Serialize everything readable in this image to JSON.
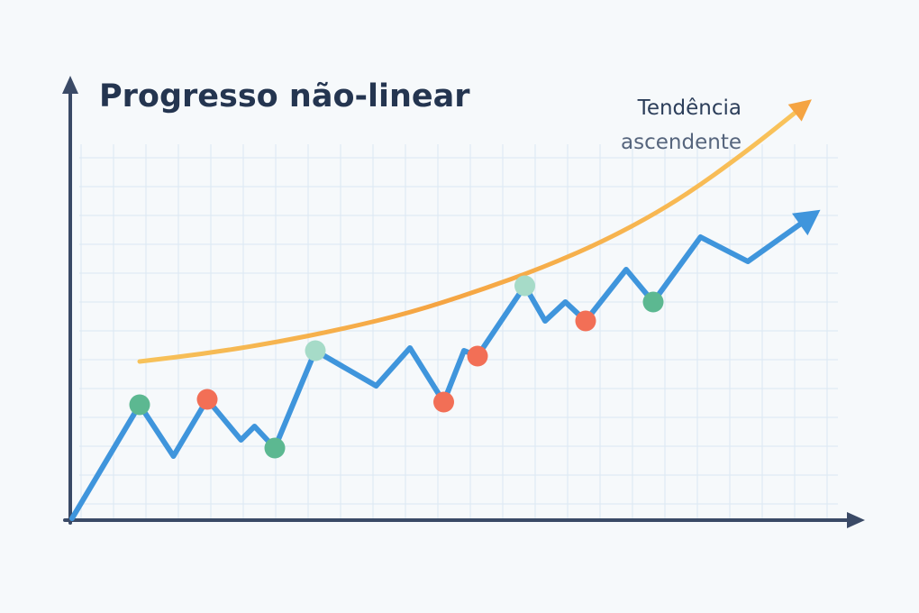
{
  "chart_data": {
    "type": "line",
    "title": "Progresso não-linear",
    "xlabel": "",
    "ylabel": "",
    "annotations": [
      {
        "text_line1": "Tendência",
        "text_line2": "ascendente"
      }
    ],
    "grid": true,
    "series": [
      {
        "role": "progress",
        "color": "#3f95dc",
        "points": [
          [
            0,
            0
          ],
          [
            1.0,
            4.2
          ],
          [
            1.5,
            2.3
          ],
          [
            2.0,
            4.4
          ],
          [
            2.5,
            2.9
          ],
          [
            2.7,
            3.4
          ],
          [
            3.0,
            2.6
          ],
          [
            3.6,
            6.2
          ],
          [
            4.5,
            4.9
          ],
          [
            5.0,
            6.3
          ],
          [
            5.5,
            4.3
          ],
          [
            5.8,
            6.2
          ],
          [
            6.0,
            6.0
          ],
          [
            6.7,
            8.6
          ],
          [
            7.0,
            7.3
          ],
          [
            7.3,
            8.0
          ],
          [
            7.6,
            7.3
          ],
          [
            8.2,
            9.2
          ],
          [
            8.6,
            8.0
          ],
          [
            9.3,
            10.4
          ],
          [
            10.0,
            9.5
          ],
          [
            10.9,
            11.1
          ]
        ],
        "marker_indices": [
          1,
          3,
          6,
          7,
          10,
          12,
          13,
          16,
          18
        ],
        "marker_kinds": [
          "up",
          "down",
          "up",
          "up-light",
          "down",
          "down",
          "up-light",
          "down",
          "up"
        ]
      },
      {
        "role": "trend",
        "color": "#f5b24e",
        "points": [
          [
            1.0,
            5.8
          ],
          [
            2.0,
            6.1
          ],
          [
            3.0,
            6.5
          ],
          [
            4.0,
            7.0
          ],
          [
            5.0,
            7.6
          ],
          [
            6.0,
            8.4
          ],
          [
            7.0,
            9.3
          ],
          [
            8.0,
            10.4
          ],
          [
            9.0,
            11.8
          ],
          [
            10.0,
            13.6
          ],
          [
            10.8,
            15.2
          ]
        ]
      }
    ],
    "xlim": [
      0,
      11.2
    ],
    "ylim": [
      0,
      16.0
    ],
    "colors": {
      "up": "#5cb891",
      "up_light": "#a6dbc8",
      "down": "#f26f56",
      "axis": "#3a4a66",
      "grid": "#dbe8f3",
      "title": "#243550",
      "label_dark": "#2c3e5a",
      "label_muted": "#56657d"
    }
  }
}
